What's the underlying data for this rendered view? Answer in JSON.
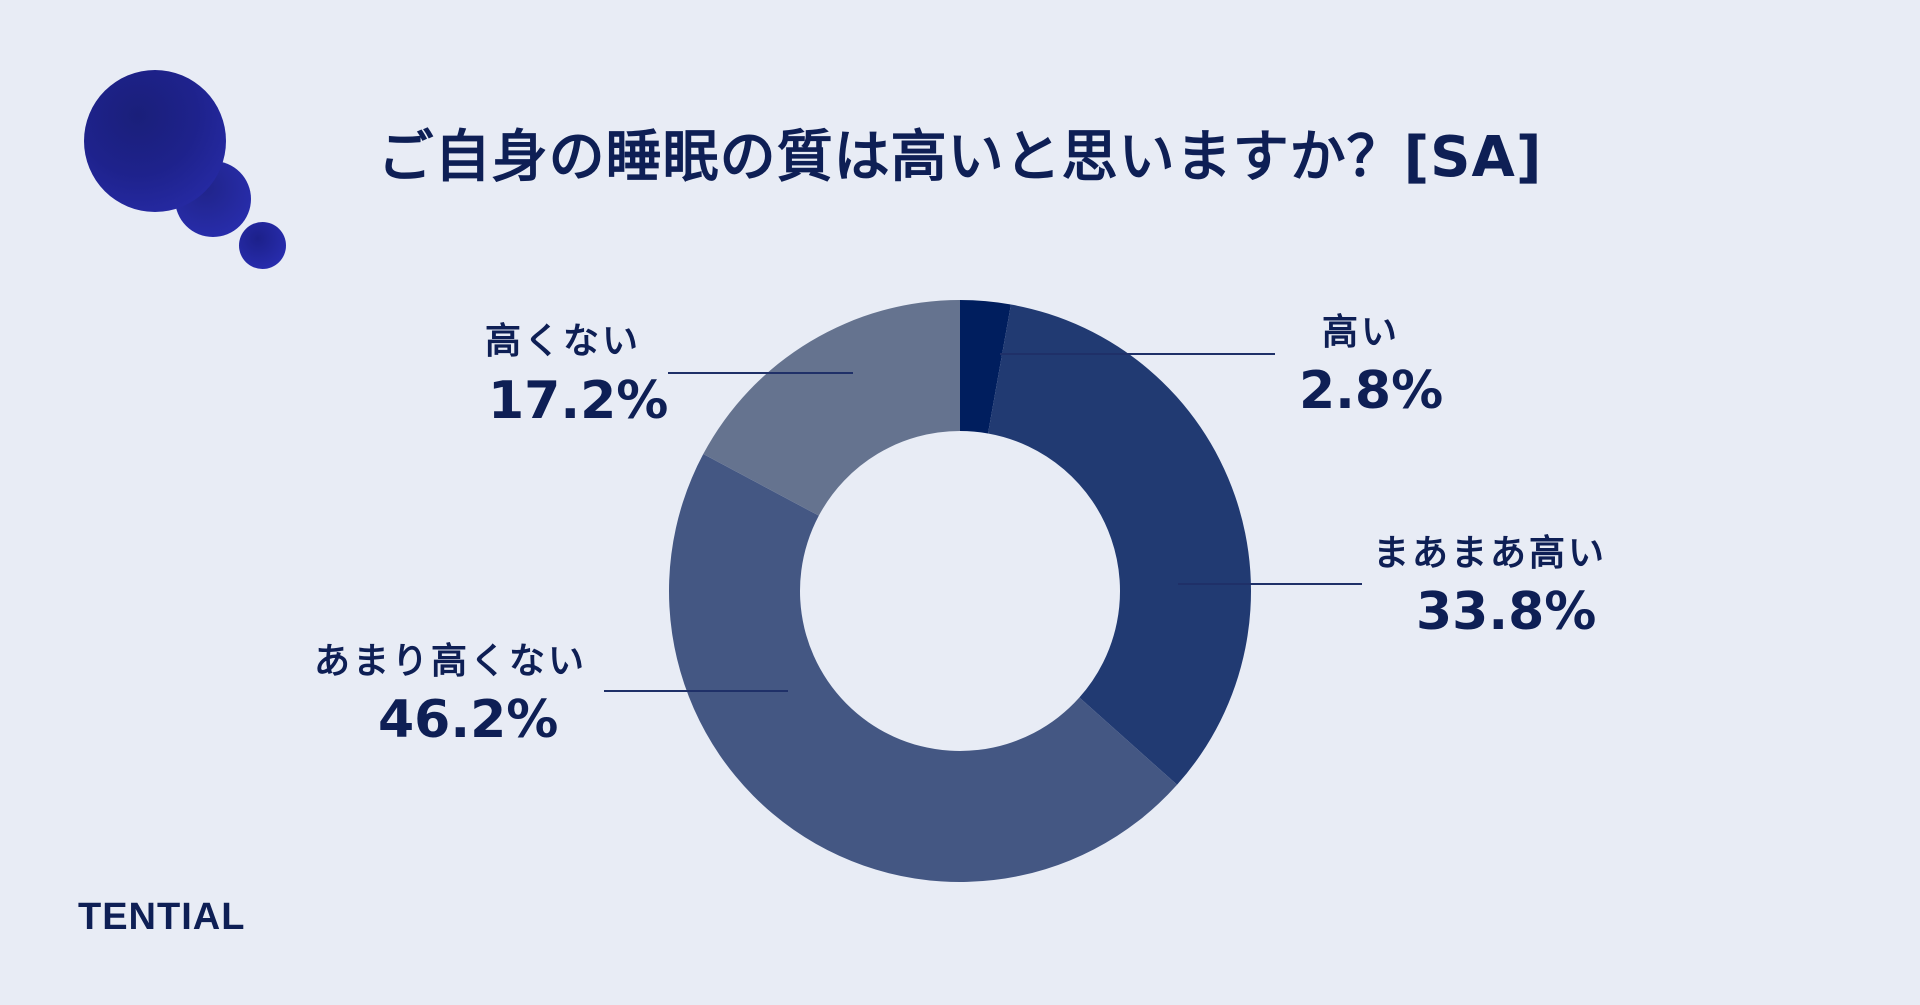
{
  "title": "ご自身の睡眠の質は高いと思いますか？[SA]",
  "brand": "TENTIAL",
  "colors": {
    "background": "#e8ecf5",
    "text": "#0e1f55",
    "leader_line": "#1f3068",
    "bubble": "#1e228c"
  },
  "chart_data": {
    "type": "pie",
    "donut": true,
    "start_angle": "12 o'clock",
    "direction": "clockwise",
    "slices": [
      {
        "label": "高い",
        "value": 2.8,
        "display": "2.8%",
        "color": "#001e5e"
      },
      {
        "label": "まあまあ高い",
        "value": 33.8,
        "display": "33.8%",
        "color": "#213a72"
      },
      {
        "label": "あまり高くない",
        "value": 46.2,
        "display": "46.2%",
        "color": "#445783"
      },
      {
        "label": "高くない",
        "value": 17.2,
        "display": "17.2%",
        "color": "#65738f"
      }
    ]
  }
}
